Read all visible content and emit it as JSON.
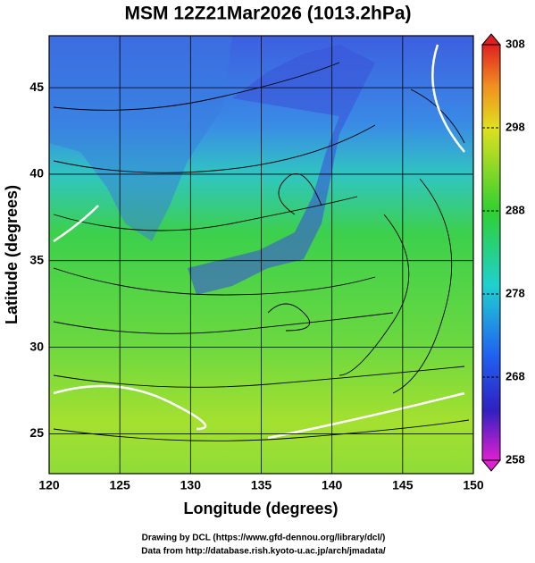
{
  "map": {
    "title": "MSM 12Z21Mar2026 (1013.2hPa)",
    "xlabel": "Longitude (degrees)",
    "ylabel": "Latitude  (degrees)",
    "xlim": [
      120,
      150
    ],
    "ylim": [
      22.7,
      48
    ],
    "xticks": [
      120,
      125,
      130,
      135,
      140,
      145,
      150
    ],
    "yticks": [
      25,
      30,
      35,
      40,
      45
    ],
    "colorbar": {
      "lim": [
        258,
        308
      ],
      "ticks": [
        258,
        268,
        278,
        288,
        298,
        308
      ]
    }
  },
  "footer": [
    "Drawing by DCL (https://www.gfd-dennou.org/library/dcl/)",
    "Data from http://database.rish.kyoto-u.ac.jp/arch/jmadata/"
  ]
}
